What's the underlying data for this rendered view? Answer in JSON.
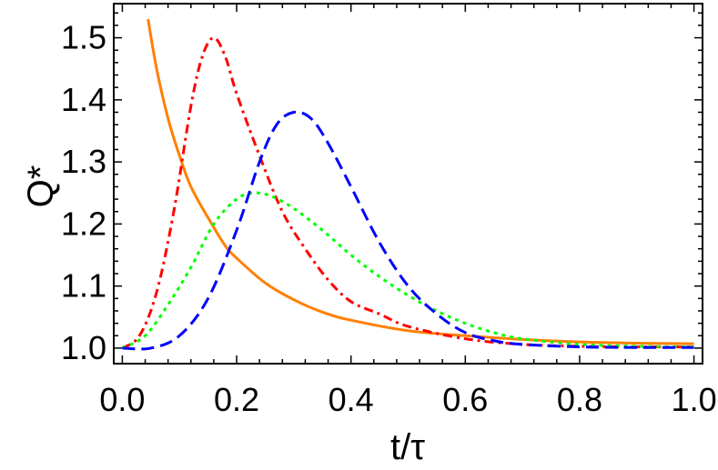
{
  "chart_data": {
    "type": "line",
    "title": "",
    "xlabel": "t/τ",
    "ylabel": "Q*",
    "xlim": [
      -0.015,
      1.015
    ],
    "ylim": [
      0.975,
      1.555
    ],
    "x_ticks": [
      0.0,
      0.2,
      0.4,
      0.6,
      0.8,
      1.0
    ],
    "x_tick_labels": [
      "0.0",
      "0.2",
      "0.4",
      "0.6",
      "0.8",
      "1.0"
    ],
    "y_ticks": [
      1.0,
      1.1,
      1.2,
      1.3,
      1.4,
      1.5
    ],
    "y_tick_labels": [
      "1.0",
      "1.1",
      "1.2",
      "1.3",
      "1.4",
      "1.5"
    ],
    "grid": false,
    "legend": "none",
    "series": [
      {
        "color": "#ff8000",
        "style": "solid",
        "x": [
          0.045,
          0.06,
          0.08,
          0.1,
          0.12,
          0.15,
          0.18,
          0.2,
          0.25,
          0.3,
          0.35,
          0.4,
          0.5,
          0.6,
          0.7,
          0.8,
          0.9,
          1.0
        ],
        "y": [
          1.53,
          1.45,
          1.37,
          1.31,
          1.26,
          1.21,
          1.165,
          1.145,
          1.105,
          1.078,
          1.058,
          1.045,
          1.028,
          1.02,
          1.014,
          1.01,
          1.008,
          1.007
        ]
      },
      {
        "color": "#ff0000",
        "style": "dashdot",
        "x": [
          0.0,
          0.03,
          0.06,
          0.09,
          0.12,
          0.14,
          0.16,
          0.18,
          0.2,
          0.24,
          0.28,
          0.32,
          0.36,
          0.4,
          0.45,
          0.5,
          0.6,
          0.7,
          0.8,
          0.9,
          1.0
        ],
        "y": [
          1.0,
          1.02,
          1.09,
          1.22,
          1.39,
          1.47,
          1.5,
          1.47,
          1.41,
          1.31,
          1.22,
          1.16,
          1.11,
          1.075,
          1.055,
          1.035,
          1.015,
          1.006,
          1.003,
          1.002,
          1.002
        ]
      },
      {
        "color": "#00ff00",
        "style": "dotted",
        "x": [
          0.0,
          0.04,
          0.08,
          0.12,
          0.16,
          0.2,
          0.23,
          0.26,
          0.3,
          0.35,
          0.4,
          0.45,
          0.5,
          0.55,
          0.6,
          0.65,
          0.7,
          0.8,
          0.9,
          1.0
        ],
        "y": [
          1.0,
          1.02,
          1.07,
          1.13,
          1.2,
          1.24,
          1.25,
          1.245,
          1.225,
          1.19,
          1.15,
          1.115,
          1.085,
          1.06,
          1.04,
          1.025,
          1.015,
          1.006,
          1.003,
          1.002
        ]
      },
      {
        "color": "#0000ff",
        "style": "dashed",
        "x": [
          0.0,
          0.05,
          0.1,
          0.15,
          0.2,
          0.24,
          0.27,
          0.3,
          0.33,
          0.36,
          0.4,
          0.45,
          0.5,
          0.55,
          0.6,
          0.65,
          0.7,
          0.8,
          0.9,
          1.0
        ],
        "y": [
          1.0,
          1.0,
          1.02,
          1.08,
          1.19,
          1.3,
          1.36,
          1.38,
          1.37,
          1.33,
          1.26,
          1.17,
          1.1,
          1.055,
          1.025,
          1.012,
          1.006,
          1.002,
          1.001,
          1.001
        ]
      }
    ]
  }
}
